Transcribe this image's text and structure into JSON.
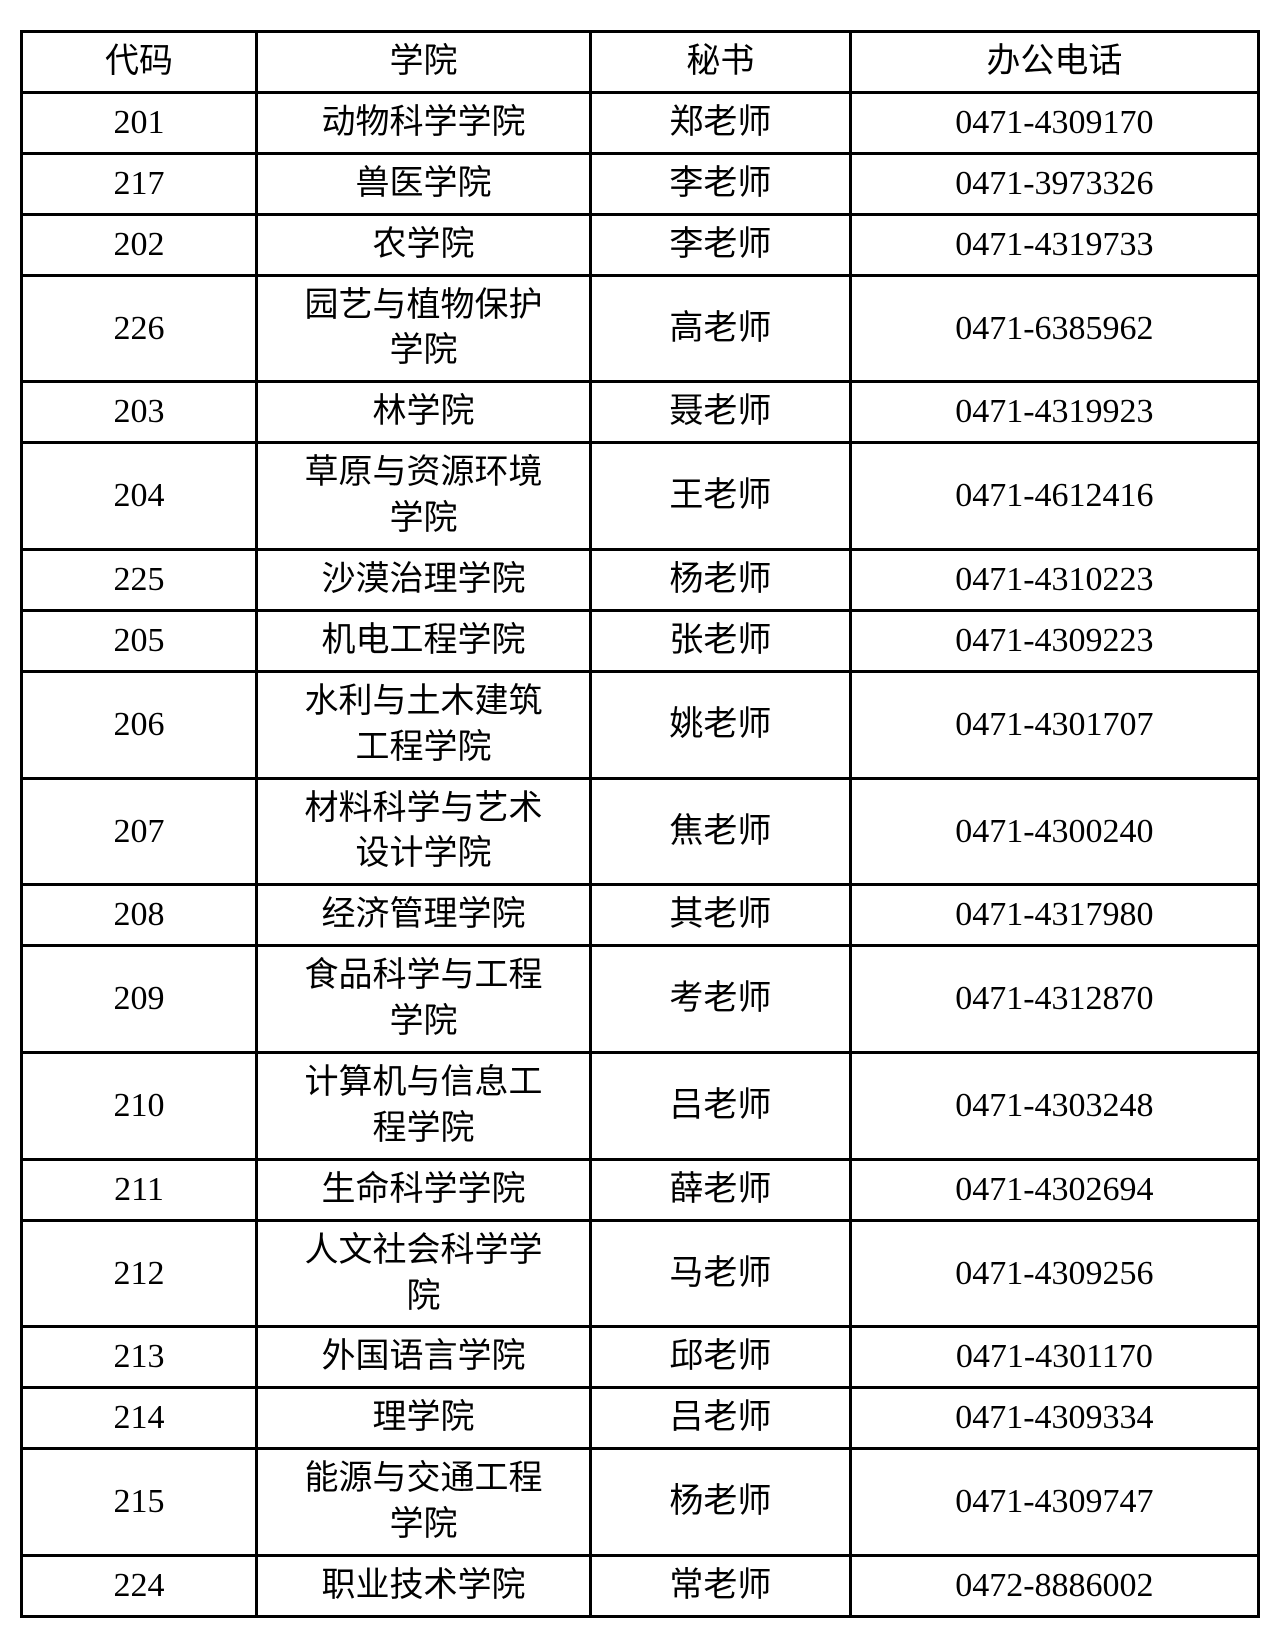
{
  "table": {
    "columns": [
      "代码",
      "学院",
      "秘书",
      "办公电话"
    ],
    "rows": [
      [
        "201",
        "动物科学学院",
        "郑老师",
        "0471-4309170"
      ],
      [
        "217",
        "兽医学院",
        "李老师",
        "0471-3973326"
      ],
      [
        "202",
        "农学院",
        "李老师",
        "0471-4319733"
      ],
      [
        "226",
        "园艺与植物保护学院",
        "高老师",
        "0471-6385962"
      ],
      [
        "203",
        "林学院",
        "聂老师",
        "0471-4319923"
      ],
      [
        "204",
        "草原与资源环境学院",
        "王老师",
        "0471-4612416"
      ],
      [
        "225",
        "沙漠治理学院",
        "杨老师",
        "0471-4310223"
      ],
      [
        "205",
        "机电工程学院",
        "张老师",
        "0471-4309223"
      ],
      [
        "206",
        "水利与土木建筑工程学院",
        "姚老师",
        "0471-4301707"
      ],
      [
        "207",
        "材料科学与艺术设计学院",
        "焦老师",
        "0471-4300240"
      ],
      [
        "208",
        "经济管理学院",
        "其老师",
        "0471-4317980"
      ],
      [
        "209",
        "食品科学与工程学院",
        "考老师",
        "0471-4312870"
      ],
      [
        "210",
        "计算机与信息工程学院",
        "吕老师",
        "0471-4303248"
      ],
      [
        "211",
        "生命科学学院",
        "薛老师",
        "0471-4302694"
      ],
      [
        "212",
        "人文社会科学学院",
        "马老师",
        "0471-4309256"
      ],
      [
        "213",
        "外国语言学院",
        "邱老师",
        "0471-4301170"
      ],
      [
        "214",
        "理学院",
        "吕老师",
        "0471-4309334"
      ],
      [
        "215",
        "能源与交通工程学院",
        "杨老师",
        "0471-4309747"
      ],
      [
        "224",
        "职业技术学院",
        "常老师",
        "0472-8886002"
      ]
    ],
    "border_color": "#000000",
    "background_color": "#ffffff",
    "text_color": "#000000",
    "font_size": 34,
    "col_widths_pct": [
      19,
      27,
      21,
      33
    ]
  }
}
